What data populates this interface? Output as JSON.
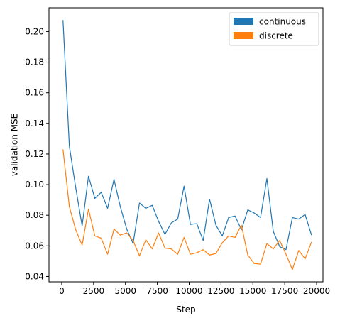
{
  "chart_data": {
    "type": "line",
    "xlabel": "Step",
    "ylabel": "validation MSE",
    "xlim": [
      -1000,
      20500
    ],
    "ylim": [
      0.0365,
      0.2155
    ],
    "xticks": [
      0,
      2500,
      5000,
      7500,
      10000,
      12500,
      15000,
      17500,
      20000
    ],
    "yticks": [
      0.04,
      0.06,
      0.08,
      0.1,
      0.12,
      0.14,
      0.16,
      0.18,
      0.2
    ],
    "xtick_labels": [
      "0",
      "2500",
      "5000",
      "7500",
      "10000",
      "12500",
      "15000",
      "17500",
      "20000"
    ],
    "ytick_labels": [
      "0.04",
      "0.06",
      "0.08",
      "0.10",
      "0.12",
      "0.14",
      "0.16",
      "0.18",
      "0.20"
    ],
    "grid": false,
    "legend_position": "top-right",
    "x": [
      100,
      600,
      1100,
      1600,
      2100,
      2600,
      3100,
      3600,
      4100,
      4600,
      5100,
      5600,
      6100,
      6600,
      7100,
      7600,
      8100,
      8600,
      9100,
      9600,
      10100,
      10600,
      11100,
      11600,
      12100,
      12600,
      13100,
      13600,
      14100,
      14600,
      15100,
      15600,
      16100,
      16600,
      17100,
      17600,
      18100,
      18600,
      19100,
      19600
    ],
    "series": [
      {
        "name": "continuous",
        "color": "#1f77b4",
        "values": [
          0.2075,
          0.125,
          0.098,
          0.073,
          0.1055,
          0.091,
          0.095,
          0.0845,
          0.1035,
          0.0855,
          0.071,
          0.0615,
          0.088,
          0.0845,
          0.0865,
          0.076,
          0.0675,
          0.075,
          0.0775,
          0.099,
          0.074,
          0.0745,
          0.0635,
          0.0905,
          0.0735,
          0.0665,
          0.0785,
          0.0795,
          0.0705,
          0.0835,
          0.0815,
          0.0785,
          0.104,
          0.0695,
          0.0595,
          0.0575,
          0.0785,
          0.0775,
          0.0805,
          0.067
        ]
      },
      {
        "name": "discrete",
        "color": "#ff7f0e",
        "values": [
          0.123,
          0.0855,
          0.0705,
          0.0605,
          0.084,
          0.0665,
          0.065,
          0.0545,
          0.071,
          0.067,
          0.0685,
          0.0635,
          0.0535,
          0.064,
          0.058,
          0.0685,
          0.0585,
          0.058,
          0.0545,
          0.0655,
          0.0545,
          0.0555,
          0.0575,
          0.054,
          0.055,
          0.062,
          0.0665,
          0.0655,
          0.0735,
          0.054,
          0.0485,
          0.048,
          0.0615,
          0.058,
          0.0635,
          0.0545,
          0.0445,
          0.057,
          0.0515,
          0.0625
        ]
      }
    ]
  }
}
